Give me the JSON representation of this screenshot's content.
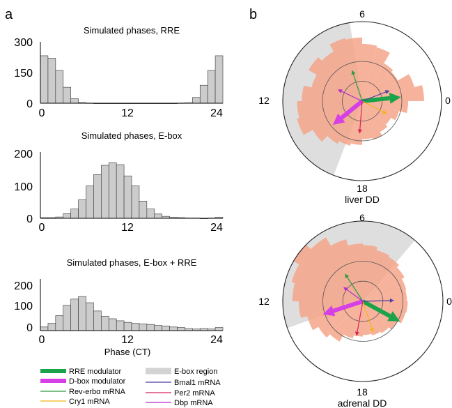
{
  "panel_labels": {
    "a": "a",
    "b": "b"
  },
  "chart_data": [
    {
      "type": "bar",
      "title": "Simulated phases, RRE",
      "x_ticks": [
        "0",
        "12",
        "24"
      ],
      "y_ticks": [
        "0",
        "150",
        "300"
      ],
      "xlim": [
        0,
        24
      ],
      "ylim": [
        0,
        300
      ],
      "bin_width": 1,
      "x": [
        0.5,
        1.5,
        2.5,
        3.5,
        4.5,
        5.5,
        6.5,
        7.5,
        8.5,
        9.5,
        10.5,
        11.5,
        12.5,
        13.5,
        14.5,
        15.5,
        16.5,
        17.5,
        18.5,
        19.5,
        20.5,
        21.5,
        22.5,
        23.5
      ],
      "values": [
        232,
        220,
        160,
        78,
        22,
        3,
        1,
        0,
        0,
        0,
        0,
        0,
        0,
        0,
        0,
        0,
        0,
        0,
        1,
        2,
        28,
        88,
        160,
        232
      ],
      "color": "#cccccc"
    },
    {
      "type": "bar",
      "title": "Simulated phases, E-box",
      "x_ticks": [
        "0",
        "12",
        "24"
      ],
      "y_ticks": [
        "0",
        "100",
        "200"
      ],
      "xlim": [
        0,
        24
      ],
      "ylim": [
        0,
        200
      ],
      "bin_width": 1,
      "x": [
        0.5,
        1.5,
        2.5,
        3.5,
        4.5,
        5.5,
        6.5,
        7.5,
        8.5,
        9.5,
        10.5,
        11.5,
        12.5,
        13.5,
        14.5,
        15.5,
        16.5,
        17.5,
        18.5,
        19.5,
        20.5,
        21.5,
        22.5,
        23.5
      ],
      "values": [
        2,
        2,
        4,
        14,
        28,
        56,
        98,
        132,
        160,
        168,
        162,
        128,
        98,
        52,
        28,
        13,
        6,
        3,
        2,
        1,
        1,
        0,
        1,
        3
      ],
      "color": "#cccccc"
    },
    {
      "type": "bar",
      "title": "Simulated phases, E-box + RRE",
      "xlabel": "Phase (CT)",
      "x_ticks": [
        "0",
        "12",
        "24"
      ],
      "y_ticks": [
        "0",
        "100",
        "200"
      ],
      "xlim": [
        0,
        24
      ],
      "ylim": [
        0,
        200
      ],
      "bin_width": 1,
      "x": [
        0.5,
        1.5,
        2.5,
        3.5,
        4.5,
        5.5,
        6.5,
        7.5,
        8.5,
        9.5,
        10.5,
        11.5,
        12.5,
        13.5,
        14.5,
        15.5,
        16.5,
        17.5,
        18.5,
        19.5,
        20.5,
        21.5,
        22.5,
        23.5
      ],
      "values": [
        14,
        28,
        58,
        98,
        122,
        132,
        108,
        76,
        56,
        46,
        38,
        32,
        28,
        26,
        24,
        20,
        18,
        14,
        12,
        8,
        6,
        8,
        6,
        12
      ],
      "color": "#cccccc"
    },
    {
      "type": "polar",
      "title": "liver DD",
      "ticks": {
        "top": "6",
        "left": "12",
        "bottom": "18",
        "right": "0"
      },
      "ebox_region_hours": [
        6.6,
        16.6
      ],
      "histogram_color": "#f4a488",
      "histogram": [
        0.78,
        0.68,
        0.52,
        0.55,
        0.7,
        0.72,
        0.8,
        0.82,
        0.72,
        0.78,
        0.66,
        0.76,
        0.82,
        0.85,
        0.72,
        0.62,
        0.58,
        0.55,
        0.48,
        0.5,
        0.45,
        0.42,
        0.48,
        0.58
      ],
      "arrows": [
        {
          "name": "RRE modulator",
          "phase": 0.4,
          "amplitude": 0.98
        },
        {
          "name": "D-box modulator",
          "phase": 14.6,
          "amplitude": 0.95
        },
        {
          "name": "Rev-erbα mRNA",
          "phase": 7.2,
          "amplitude": 0.82
        },
        {
          "name": "Cry1 mRNA",
          "phase": 22.2,
          "amplitude": 0.7
        },
        {
          "name": "Bmal1 mRNA",
          "phase": 1.4,
          "amplitude": 0.74
        },
        {
          "name": "Per2 mRNA",
          "phase": 17.7,
          "amplitude": 0.82
        },
        {
          "name": "Dbp mRNA",
          "phase": 10.3,
          "amplitude": 0.68
        }
      ]
    },
    {
      "type": "polar",
      "title": "adrenal DD",
      "ticks": {
        "top": "6",
        "left": "12",
        "bottom": "18",
        "right": "0"
      },
      "ebox_region_hours": [
        3.3,
        13.3
      ],
      "histogram_color": "#f4a488",
      "histogram": [
        0.55,
        0.56,
        0.6,
        0.64,
        0.66,
        0.7,
        0.72,
        0.8,
        0.92,
        1.0,
        0.92,
        0.88,
        0.8,
        0.72,
        0.64,
        0.58,
        0.48,
        0.44,
        0.42,
        0.44,
        0.46,
        0.5,
        0.55,
        0.56
      ],
      "arrows": [
        {
          "name": "RRE modulator",
          "phase": 22.1,
          "amplitude": 1.05
        },
        {
          "name": "D-box modulator",
          "phase": 13.2,
          "amplitude": 1.05
        },
        {
          "name": "Rev-erbα mRNA",
          "phase": 8.2,
          "amplitude": 0.82
        },
        {
          "name": "Cry1 mRNA",
          "phase": 19.2,
          "amplitude": 0.82
        },
        {
          "name": "Bmal1 mRNA",
          "phase": 0.1,
          "amplitude": 0.78
        },
        {
          "name": "Per2 mRNA",
          "phase": 17.3,
          "amplitude": 0.88
        },
        {
          "name": "Dbp mRNA",
          "phase": 9.6,
          "amplitude": 0.6
        }
      ]
    }
  ],
  "legend": [
    {
      "label": "RRE modulator",
      "color": "#1aa34a",
      "kind": "thick"
    },
    {
      "label": "E-box region",
      "color": "#d3d3d3",
      "kind": "band"
    },
    {
      "label": "D-box modulator",
      "color": "#d63ee6",
      "kind": "thick"
    },
    {
      "label": "Bmal1 mRNA",
      "color": "#4b3fa3",
      "kind": "thin"
    },
    {
      "label": "Rev-erbα mRNA",
      "color": "#2e9b3c",
      "kind": "thin"
    },
    {
      "label": "Per2 mRNA",
      "color": "#d6245a",
      "kind": "thin"
    },
    {
      "label": "Cry1 mRNA",
      "color": "#f5b21a",
      "kind": "thin"
    },
    {
      "label": "Dbp mRNA",
      "color": "#b030c8",
      "kind": "thin"
    }
  ]
}
